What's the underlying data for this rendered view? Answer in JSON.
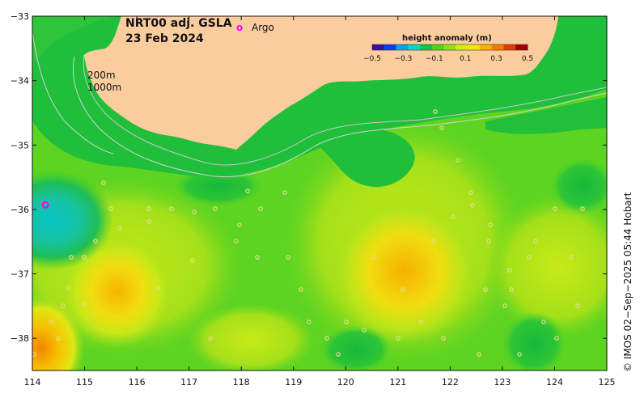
{
  "title": {
    "line1": "NRT00 adj. GSLA",
    "line2": "23 Feb 2024"
  },
  "argo_legend": {
    "symbol": "o",
    "label": "Argo"
  },
  "depth_labels": {
    "shallow": "200m",
    "deep": "1000m"
  },
  "colorbar": {
    "title": "height anomaly (m)",
    "ticks": [
      "−0.5",
      "−0.3",
      "−0.1",
      "0.1",
      "0.3",
      "0.5"
    ],
    "colors": [
      "#3a0ea0",
      "#0b3ef0",
      "#08a4f0",
      "#07d7c4",
      "#17c24a",
      "#4fd41d",
      "#93e01a",
      "#d4ec14",
      "#f8e40c",
      "#f8b400",
      "#f07d00",
      "#e03c00",
      "#a00000"
    ]
  },
  "axes": {
    "x_ticks": [
      "114",
      "115",
      "116",
      "117",
      "118",
      "119",
      "120",
      "121",
      "122",
      "123",
      "124",
      "125"
    ],
    "y_ticks": [
      "−33",
      "−34",
      "−35",
      "−36",
      "−37",
      "−38"
    ],
    "x_range": [
      114,
      125
    ],
    "y_range": [
      -38.5,
      -33
    ]
  },
  "credit": "© IMOS 02−Sep−2025 05:44 Hobart",
  "colors": {
    "land": "#fbcd9e",
    "shelf": "#1dbe3a",
    "ocean_base": "#5cd421",
    "argo": "#ff00ff"
  },
  "argo_floats": [
    {
      "lon": 114.25,
      "lat": -35.93
    }
  ]
}
